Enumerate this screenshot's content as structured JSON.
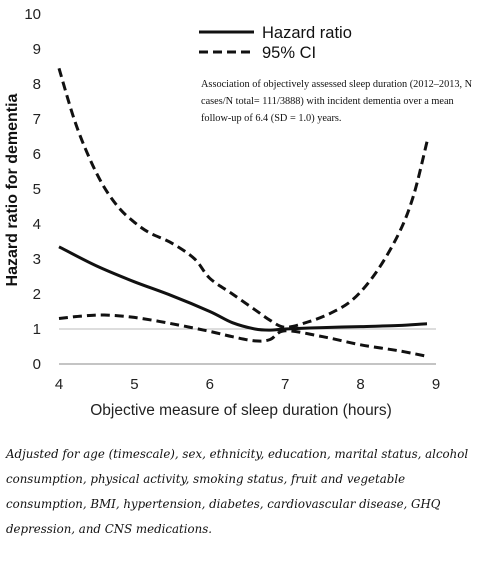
{
  "chart_data": {
    "type": "line",
    "title": "",
    "xlabel": "Objective measure of sleep duration (hours)",
    "ylabel": "Hazard ratio for dementia",
    "xlim": [
      4,
      9
    ],
    "ylim": [
      0,
      10
    ],
    "x_ticks": [
      "4",
      "5",
      "6",
      "7",
      "8",
      "9"
    ],
    "y_ticks": [
      "0",
      "1",
      "2",
      "3",
      "4",
      "5",
      "6",
      "7",
      "8",
      "9",
      "10"
    ],
    "grid": false,
    "reference_line": {
      "y": 1
    },
    "legend_position": "top-right",
    "series": [
      {
        "name": "Hazard ratio",
        "style": "solid",
        "x": [
          4.0,
          4.5,
          5.0,
          5.5,
          6.0,
          6.3,
          6.6,
          6.8,
          7.0,
          7.5,
          8.0,
          8.5,
          8.88
        ],
        "y": [
          3.35,
          2.8,
          2.35,
          1.95,
          1.5,
          1.18,
          1.0,
          0.97,
          1.0,
          1.04,
          1.07,
          1.1,
          1.15
        ]
      },
      {
        "name": "95% CI",
        "style": "dashed",
        "x": [
          4.0,
          4.2,
          4.4,
          4.6,
          4.8,
          5.0,
          5.2,
          5.5,
          5.8,
          6.0,
          6.3,
          6.6,
          6.8,
          7.0,
          7.3,
          7.6,
          7.9,
          8.2,
          8.5,
          8.7,
          8.88
        ],
        "y": [
          8.45,
          7.0,
          5.9,
          5.05,
          4.45,
          4.05,
          3.75,
          3.45,
          3.0,
          2.45,
          2.0,
          1.55,
          1.25,
          1.05,
          1.2,
          1.45,
          1.85,
          2.6,
          3.7,
          4.8,
          6.35
        ]
      },
      {
        "name": "95% CI",
        "style": "dashed",
        "x": [
          4.0,
          4.3,
          4.6,
          5.0,
          5.5,
          6.0,
          6.3,
          6.6,
          6.8,
          7.0,
          7.5,
          8.0,
          8.5,
          8.88
        ],
        "y": [
          1.3,
          1.37,
          1.4,
          1.33,
          1.15,
          0.93,
          0.78,
          0.66,
          0.7,
          0.95,
          0.78,
          0.55,
          0.38,
          0.22
        ]
      }
    ],
    "legend": [
      {
        "label": "Hazard ratio",
        "style": "solid"
      },
      {
        "label": "95% CI",
        "style": "dashed"
      }
    ],
    "annotation": "Association of objectively assessed sleep duration (2012–2013, N cases/N total= 111/3888) with incident dementia over a mean follow-up of 6.4 (SD = 1.0) years."
  },
  "footnote": "Adjusted for age (timescale), sex, ethnicity, education, marital status, alcohol consumption, physical activity, smoking status, fruit and vegetable consumption, BMI, hypertension, diabetes, cardiovascular disease, GHQ depression, and CNS medications."
}
